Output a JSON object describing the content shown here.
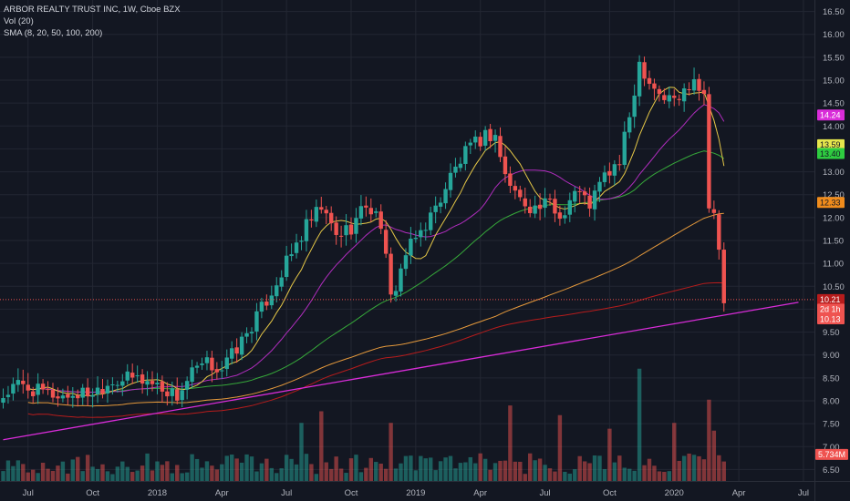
{
  "legend": {
    "title": "ARBOR REALTY TRUST INC, 1W, Cboe BZX",
    "vol": "Vol (20)",
    "sma": "SMA (8, 20, 50, 100, 200)"
  },
  "colors": {
    "background": "#131722",
    "grid": "#232733",
    "up": "#26a69a",
    "down": "#ef5350",
    "sma8": "#e6c847",
    "sma20": "#b02dbe",
    "sma50": "#36a83a",
    "sma100": "#e69a3c",
    "sma200": "#b71c1c",
    "trendline": "#d92cd9",
    "last_price_line": "#ef5350"
  },
  "chart_data": {
    "type": "candlestick",
    "symbol": "ARBOR REALTY TRUST INC",
    "timeframe": "1W",
    "exchange": "Cboe BZX",
    "price_axis": {
      "min": 6.25,
      "max": 16.75,
      "ticks": [
        "16.50",
        "16.00",
        "15.50",
        "15.00",
        "14.50",
        "14.00",
        "13.50",
        "13.00",
        "12.50",
        "12.00",
        "11.50",
        "11.00",
        "10.50",
        "10.00",
        "9.50",
        "9.00",
        "8.50",
        "8.00",
        "7.50",
        "7.00",
        "6.50"
      ]
    },
    "time_axis": {
      "labels": [
        "Jul",
        "Oct",
        "2018",
        "Apr",
        "Jul",
        "Oct",
        "2019",
        "Apr",
        "Jul",
        "Oct",
        "2020",
        "Apr",
        "Jul"
      ],
      "label_weeks": [
        5,
        18,
        31,
        44,
        57,
        70,
        83,
        96,
        109,
        122,
        135,
        148,
        161
      ]
    },
    "price_segments": [
      {
        "w": 0,
        "p": 8.1
      },
      {
        "w": 3,
        "p": 8.35
      },
      {
        "w": 7,
        "p": 8.2
      },
      {
        "w": 12,
        "p": 8.1
      },
      {
        "w": 18,
        "p": 8.2
      },
      {
        "w": 22,
        "p": 8.45
      },
      {
        "w": 27,
        "p": 8.5
      },
      {
        "w": 31,
        "p": 8.35
      },
      {
        "w": 35,
        "p": 8.1
      },
      {
        "w": 38,
        "p": 8.6
      },
      {
        "w": 41,
        "p": 8.8
      },
      {
        "w": 44,
        "p": 8.7
      },
      {
        "w": 48,
        "p": 9.3
      },
      {
        "w": 52,
        "p": 10.0
      },
      {
        "w": 55,
        "p": 10.6
      },
      {
        "w": 58,
        "p": 11.2
      },
      {
        "w": 61,
        "p": 11.8
      },
      {
        "w": 64,
        "p": 12.2
      },
      {
        "w": 67,
        "p": 11.6
      },
      {
        "w": 70,
        "p": 11.8
      },
      {
        "w": 73,
        "p": 12.3
      },
      {
        "w": 76,
        "p": 11.9
      },
      {
        "w": 78,
        "p": 10.2
      },
      {
        "w": 81,
        "p": 11.2
      },
      {
        "w": 84,
        "p": 11.7
      },
      {
        "w": 87,
        "p": 12.2
      },
      {
        "w": 90,
        "p": 12.9
      },
      {
        "w": 93,
        "p": 13.4
      },
      {
        "w": 97,
        "p": 13.8
      },
      {
        "w": 99,
        "p": 13.8
      },
      {
        "w": 101,
        "p": 12.9
      },
      {
        "w": 104,
        "p": 12.4
      },
      {
        "w": 107,
        "p": 12.2
      },
      {
        "w": 110,
        "p": 12.3
      },
      {
        "w": 112,
        "p": 12.0
      },
      {
        "w": 115,
        "p": 12.6
      },
      {
        "w": 118,
        "p": 12.3
      },
      {
        "w": 121,
        "p": 12.9
      },
      {
        "w": 124,
        "p": 13.2
      },
      {
        "w": 126,
        "p": 14.2
      },
      {
        "w": 128,
        "p": 15.4
      },
      {
        "w": 130,
        "p": 15.0
      },
      {
        "w": 133,
        "p": 14.6
      },
      {
        "w": 136,
        "p": 14.6
      },
      {
        "w": 139,
        "p": 15.1
      },
      {
        "w": 141,
        "p": 14.7
      },
      {
        "w": 142,
        "p": 12.2
      },
      {
        "w": 143,
        "p": 12.1
      },
      {
        "w": 144,
        "p": 11.3
      },
      {
        "w": 145,
        "p": 10.1
      }
    ],
    "volume_axis": {
      "max": 8.0,
      "unit": "M"
    },
    "volume_high_spikes": [
      {
        "w": 60,
        "v": 3.0
      },
      {
        "w": 64,
        "v": 3.6
      },
      {
        "w": 78,
        "v": 3.0
      },
      {
        "w": 102,
        "v": 3.9
      },
      {
        "w": 112,
        "v": 3.4
      },
      {
        "w": 122,
        "v": 2.7
      },
      {
        "w": 128,
        "v": 5.8
      },
      {
        "w": 135,
        "v": 3.0
      },
      {
        "w": 142,
        "v": 4.2
      },
      {
        "w": 143,
        "v": 2.6
      }
    ],
    "series": [
      {
        "name": "SMA 8"
      },
      {
        "name": "SMA 20"
      },
      {
        "name": "SMA 50"
      },
      {
        "name": "SMA 100"
      },
      {
        "name": "SMA 200"
      }
    ],
    "price_labels": [
      {
        "text": "14.24",
        "price": 14.24,
        "color": "#d92cd9",
        "text_color": "#ffffff"
      },
      {
        "text": "13.59",
        "price": 13.59,
        "color": "#e6e64c",
        "text_color": "#131722"
      },
      {
        "text": "13.40",
        "price": 13.4,
        "color": "#2ecc40",
        "text_color": "#131722"
      },
      {
        "text": "12.33",
        "price": 12.33,
        "color": "#f08c1c",
        "text_color": "#131722"
      },
      {
        "text": "10.21",
        "price": 10.21,
        "color": "#b71c1c",
        "text_color": "#ffffff"
      },
      {
        "text": "2d 1h",
        "price": 10.0,
        "color": "#ef5350",
        "text_color": "#ffffff"
      },
      {
        "text": "10.13",
        "price": 9.79,
        "color": "#ef5350",
        "text_color": "#ffffff"
      }
    ],
    "volume_label": {
      "text": "5.734M",
      "color": "#ef5350"
    },
    "last_price": 10.13,
    "trendline": {
      "from": {
        "w": 0,
        "p": 7.15
      },
      "to": {
        "w": 160,
        "p": 10.15
      }
    },
    "grid": true,
    "legend_position": "top-left"
  }
}
